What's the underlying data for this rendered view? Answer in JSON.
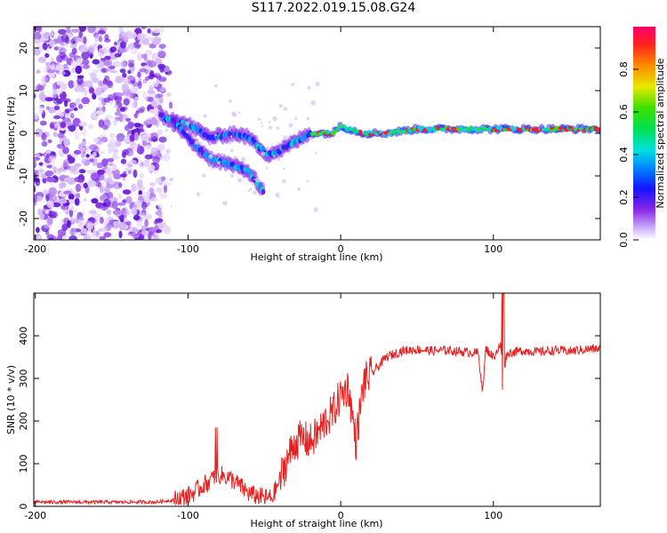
{
  "title": "S117.2022.019.15.08.G24",
  "chart_data": [
    {
      "type": "heatmap",
      "xlabel": "Height of straight line (km)",
      "ylabel": "Frequency (Hz)",
      "xlim": [
        -201,
        170
      ],
      "ylim": [
        -25,
        25
      ],
      "xticks": [
        -200,
        -100,
        0,
        100
      ],
      "yticks": [
        -20,
        -10,
        0,
        10,
        20
      ],
      "colorbar": {
        "label": "Normalized spectral amplitude",
        "range": [
          0,
          1
        ],
        "ticks": [
          0.0,
          0.2,
          0.4,
          0.6,
          0.8
        ]
      },
      "ridges": [
        {
          "name": "upper",
          "points": [
            [
              -118,
              4
            ],
            [
              -100,
              2
            ],
            [
              -85,
              -1
            ],
            [
              -70,
              0
            ],
            [
              -60,
              -1
            ],
            [
              -48,
              -5
            ],
            [
              -40,
              -4
            ],
            [
              -30,
              -2
            ],
            [
              -20,
              0
            ],
            [
              -10,
              0
            ],
            [
              -5,
              0
            ],
            [
              0,
              2
            ],
            [
              5,
              1
            ],
            [
              15,
              0
            ],
            [
              30,
              0
            ],
            [
              50,
              1
            ],
            [
              80,
              1
            ],
            [
              100,
              1
            ],
            [
              140,
              1
            ],
            [
              170,
              1
            ]
          ]
        },
        {
          "name": "lower",
          "points": [
            [
              -110,
              3
            ],
            [
              -95,
              -3
            ],
            [
              -85,
              -6
            ],
            [
              -75,
              -7
            ],
            [
              -60,
              -9
            ],
            [
              -50,
              -14
            ]
          ]
        }
      ]
    },
    {
      "type": "line",
      "xlabel": "Height of straight line (km)",
      "ylabel": "SNR (10 * v/v)",
      "xlim": [
        -201,
        170
      ],
      "ylim": [
        0,
        500
      ],
      "xticks": [
        -200,
        -100,
        0,
        100
      ],
      "yticks": [
        0,
        100,
        200,
        300,
        400
      ],
      "color": "#e52222",
      "series": [
        {
          "name": "SNR",
          "x": [
            -201,
            -180,
            -150,
            -120,
            -110,
            -100,
            -95,
            -90,
            -85,
            -80,
            -75,
            -70,
            -65,
            -60,
            -55,
            -50,
            -45,
            -40,
            -35,
            -30,
            -25,
            -20,
            -15,
            -10,
            -5,
            0,
            5,
            10,
            15,
            20,
            25,
            30,
            40,
            50,
            60,
            70,
            80,
            90,
            93,
            95,
            100,
            105,
            106,
            108,
            110,
            120,
            130,
            140,
            150,
            160,
            170
          ],
          "y": [
            10,
            10,
            10,
            10,
            15,
            25,
            35,
            50,
            60,
            75,
            70,
            60,
            45,
            30,
            25,
            20,
            20,
            60,
            110,
            150,
            160,
            150,
            170,
            200,
            220,
            260,
            280,
            150,
            290,
            310,
            330,
            350,
            365,
            368,
            365,
            366,
            362,
            360,
            270,
            370,
            350,
            380,
            260,
            350,
            360,
            365,
            362,
            366,
            364,
            368,
            370
          ]
        }
      ]
    }
  ]
}
